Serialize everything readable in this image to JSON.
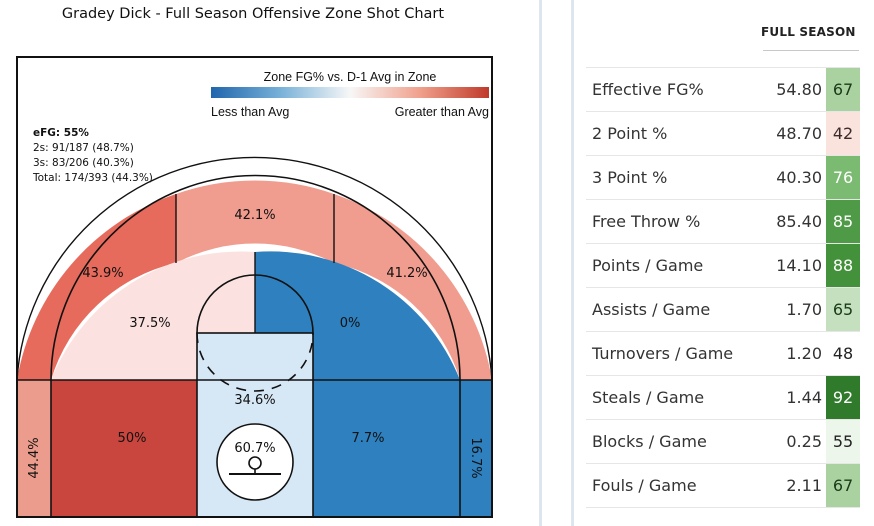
{
  "chart_data": {
    "type": "shot-zone",
    "title": "Gradey Dick - Full Season Offensive Zone Shot Chart",
    "legend": {
      "title": "Zone FG% vs. D-1 Avg in Zone",
      "low_label": "Less than Avg",
      "high_label": "Greater than Avg"
    },
    "summary": {
      "efg": "eFG: 55%",
      "twos": "2s: 91/187 (48.7%)",
      "threes": "3s: 83/206 (40.3%)",
      "total": "Total: 174/393 (44.3%)"
    },
    "zones": [
      {
        "zone": "left-corner-three",
        "fg": "44.4%",
        "color": "#ec9c8c"
      },
      {
        "zone": "left-baseline-mid",
        "fg": "50%",
        "color": "#c9463f"
      },
      {
        "zone": "paint",
        "fg": "34.6%",
        "color": "#d6e7f6"
      },
      {
        "zone": "restricted-area",
        "fg": "60.7%",
        "color": "#d6e7f6"
      },
      {
        "zone": "right-baseline-mid",
        "fg": "7.7%",
        "color": "#2e80bf"
      },
      {
        "zone": "right-corner-three",
        "fg": "16.7%",
        "color": "#2e80bf"
      },
      {
        "zone": "left-elbow-mid",
        "fg": "37.5%",
        "color": "#fbe2e0"
      },
      {
        "zone": "top-key-mid",
        "fg": "0%",
        "color": "#2e80bf"
      },
      {
        "zone": "left-wing-three",
        "fg": "43.9%",
        "color": "#e76b5c"
      },
      {
        "zone": "top-three",
        "fg": "42.1%",
        "color": "#f09c8e"
      },
      {
        "zone": "right-wing-three",
        "fg": "41.2%",
        "color": "#f09c8e"
      }
    ]
  },
  "stats": {
    "header": "FULL SEASON",
    "rows": [
      {
        "label": "Effective FG%",
        "value": "54.80",
        "pct": "67",
        "bg": "#a9d2a0",
        "fg": "#1b3a17"
      },
      {
        "label": "2 Point %",
        "value": "48.70",
        "pct": "42",
        "bg": "#fbe3dd",
        "fg": "#3b2a28"
      },
      {
        "label": "3 Point %",
        "value": "40.30",
        "pct": "76",
        "bg": "#7bbb71",
        "fg": "#ffffff"
      },
      {
        "label": "Free Throw %",
        "value": "85.40",
        "pct": "85",
        "bg": "#4f9a46",
        "fg": "#ffffff"
      },
      {
        "label": "Points / Game",
        "value": "14.10",
        "pct": "88",
        "bg": "#43913a",
        "fg": "#ffffff"
      },
      {
        "label": "Assists / Game",
        "value": "1.70",
        "pct": "65",
        "bg": "#c4e0be",
        "fg": "#1b3a17"
      },
      {
        "label": "Turnovers / Game",
        "value": "1.20",
        "pct": "48",
        "bg": "#ffffff",
        "fg": "#222222"
      },
      {
        "label": "Steals / Game",
        "value": "1.44",
        "pct": "92",
        "bg": "#2f7a2b",
        "fg": "#ffffff"
      },
      {
        "label": "Blocks / Game",
        "value": "0.25",
        "pct": "55",
        "bg": "#edf6eb",
        "fg": "#222222"
      },
      {
        "label": "Fouls / Game",
        "value": "2.11",
        "pct": "67",
        "bg": "#a9d2a0",
        "fg": "#1b3a17"
      }
    ]
  }
}
